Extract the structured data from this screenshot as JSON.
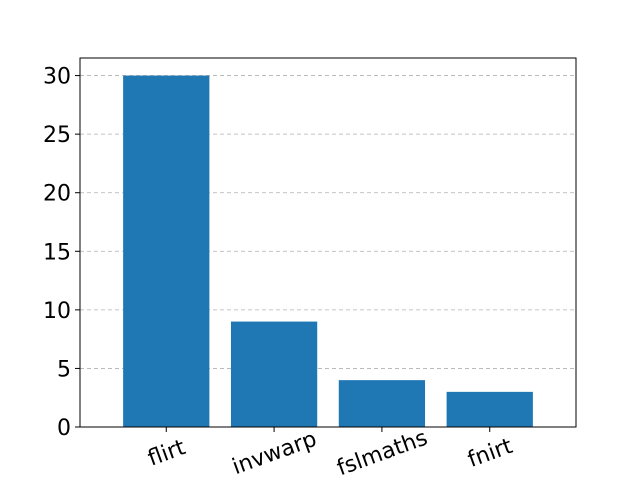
{
  "chart_data": {
    "type": "bar",
    "categories": [
      "flirt",
      "invwarp",
      "fslmaths",
      "fnirt"
    ],
    "values": [
      30,
      9,
      4,
      3
    ],
    "title": "",
    "xlabel": "",
    "ylabel": "",
    "ylim": [
      0,
      31.5
    ],
    "yticks": [
      0,
      5,
      10,
      15,
      20,
      25,
      30
    ],
    "grid": "y-dashed",
    "bar_color": "#1f77b4",
    "x_tick_rotation": 20
  }
}
